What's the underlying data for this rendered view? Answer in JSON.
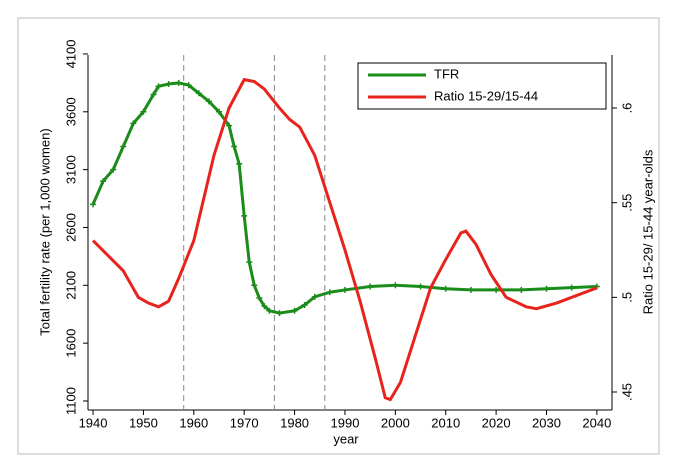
{
  "chart_data": {
    "type": "line",
    "xlabel": "year",
    "ylabel": "Total fertility rate (per 1,000 women)",
    "y2label": "Ratio 15-29/ 15-44 year-olds",
    "xlim": [
      1939,
      2043
    ],
    "xticks": [
      1940,
      1950,
      1960,
      1970,
      1980,
      1990,
      2000,
      2010,
      2020,
      2030,
      2040
    ],
    "ylim": [
      1022,
      4091
    ],
    "yticks": [
      1100,
      1600,
      2100,
      2600,
      3100,
      3600,
      4100
    ],
    "y2lim": [
      0.4405,
      0.628
    ],
    "y2ticks": [
      {
        "value": 0.45,
        "label": ".45"
      },
      {
        "value": 0.5,
        "label": ".5"
      },
      {
        "value": 0.55,
        "label": ".55"
      },
      {
        "value": 0.6,
        "label": ".6"
      }
    ],
    "vlines": [
      1958,
      1976,
      1986
    ],
    "legend": "top-right",
    "series": [
      {
        "name": "TFR",
        "color": "#1a8c1a",
        "marker": "plus",
        "x": [
          1940,
          1942,
          1944,
          1946,
          1948,
          1950,
          1952,
          1953,
          1955,
          1957,
          1959,
          1961,
          1963,
          1965,
          1967,
          1968,
          1969,
          1970,
          1971,
          1972,
          1973,
          1974,
          1975,
          1977,
          1980,
          1982,
          1984,
          1987,
          1990,
          1995,
          2000,
          2005,
          2010,
          2015,
          2020,
          2025,
          2030,
          2035,
          2040
        ],
        "values": [
          2800,
          3000,
          3100,
          3300,
          3500,
          3600,
          3750,
          3820,
          3840,
          3850,
          3830,
          3760,
          3690,
          3600,
          3480,
          3300,
          3150,
          2700,
          2300,
          2100,
          1990,
          1920,
          1880,
          1860,
          1880,
          1930,
          2000,
          2040,
          2060,
          2090,
          2100,
          2090,
          2070,
          2060,
          2060,
          2060,
          2070,
          2080,
          2090
        ]
      },
      {
        "name": "Ratio 15-29/15-44",
        "color": "#e8231c",
        "axis": "y2",
        "x": [
          1940,
          1943,
          1946,
          1949,
          1951,
          1953,
          1955,
          1957,
          1960,
          1964,
          1967,
          1970,
          1972,
          1974,
          1977,
          1979,
          1981,
          1984,
          1987,
          1990,
          1993,
          1996,
          1998,
          1999,
          2001,
          2004,
          2007,
          2010,
          2013,
          2014,
          2016,
          2019,
          2022,
          2026,
          2028,
          2032,
          2036,
          2040
        ],
        "values": [
          0.53,
          0.522,
          0.514,
          0.5,
          0.497,
          0.495,
          0.498,
          0.51,
          0.53,
          0.575,
          0.6,
          0.615,
          0.614,
          0.61,
          0.6,
          0.594,
          0.59,
          0.575,
          0.55,
          0.525,
          0.498,
          0.468,
          0.447,
          0.446,
          0.455,
          0.48,
          0.505,
          0.52,
          0.534,
          0.535,
          0.528,
          0.512,
          0.5,
          0.495,
          0.494,
          0.497,
          0.501,
          0.505
        ]
      }
    ]
  }
}
